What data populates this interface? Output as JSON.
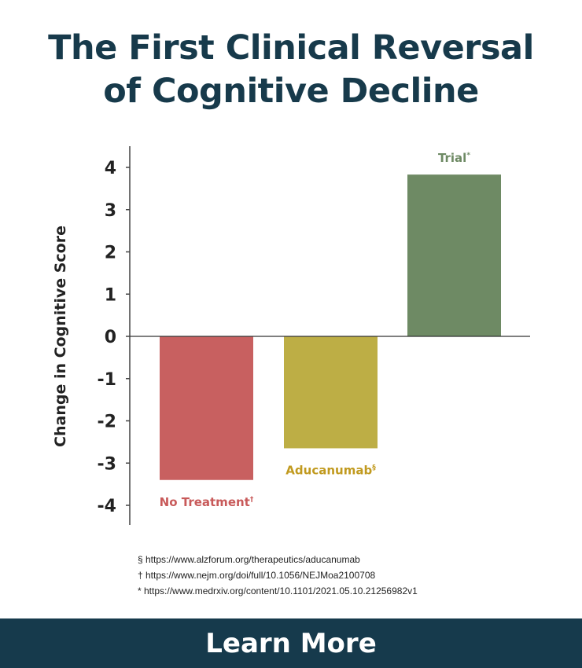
{
  "title_line1": "The First Clinical Reversal",
  "title_line2": "of Cognitive Decline",
  "chart_data": {
    "type": "bar",
    "title": "The First Clinical Reversal of Cognitive Decline",
    "ylabel": "Change in Cognitive Score",
    "xlabel": "",
    "ylim": [
      -4.5,
      4.5
    ],
    "yticks": [
      4,
      3,
      2,
      1,
      0,
      -1,
      -2,
      -3,
      -4
    ],
    "ytick_labels": [
      "4",
      "3",
      "2",
      "1",
      "0",
      "-1",
      "-2",
      "-3",
      "-4"
    ],
    "grid": false,
    "categories": [
      "No Treatment†",
      "Aducanumab§",
      "Trial*"
    ],
    "label_names": [
      "No Treatment",
      "Aducanumab",
      "Trial"
    ],
    "label_marks": [
      "†",
      "§",
      "*"
    ],
    "values": [
      -3.4,
      -2.65,
      3.83
    ],
    "colors": [
      "#c86060",
      "#bdae45",
      "#6e8a64"
    ],
    "label_colors": [
      "#c85a5a",
      "#c19a1f",
      "#6e8a64"
    ]
  },
  "footnotes": [
    "§ https://www.alzforum.org/therapeutics/aducanumab",
    "† https://www.nejm.org/doi/full/10.1056/NEJMoa2100708",
    "* https://www.medrxiv.org/content/10.1101/2021.05.10.21256982v1"
  ],
  "cta_label": "Learn More"
}
